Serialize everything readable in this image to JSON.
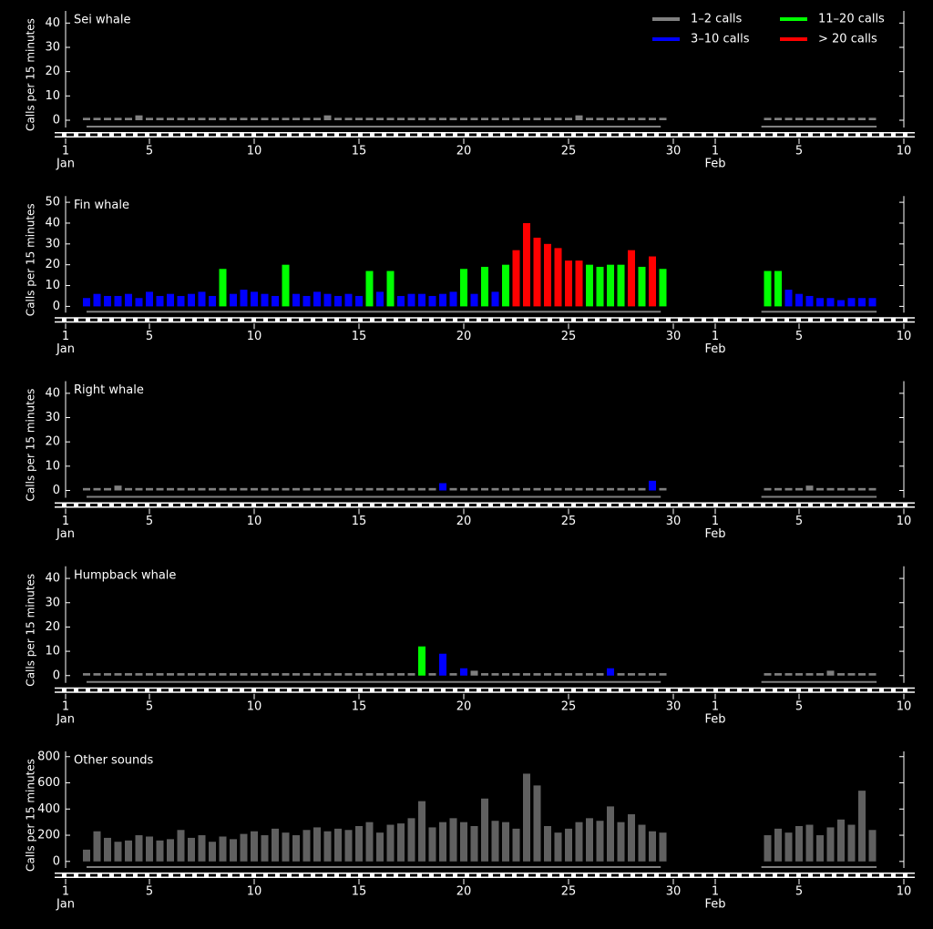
{
  "chart_data": {
    "type": "bar",
    "y_label": "Calls per 15 minutes",
    "legend": [
      {
        "name": "1–2 calls",
        "color": "#808080",
        "max": 2
      },
      {
        "name": "3–10 calls",
        "color": "#0000ff",
        "max": 10
      },
      {
        "name": "11–20 calls",
        "color": "#00ff00",
        "max": 20
      },
      {
        "name": "> 20 calls",
        "color": "#ff0000",
        "max": null
      }
    ],
    "xlim": [
      0,
      40
    ],
    "xticks": [
      {
        "value": 0,
        "label": "1"
      },
      {
        "value": 4,
        "label": "5"
      },
      {
        "value": 9,
        "label": "10"
      },
      {
        "value": 14,
        "label": "15"
      },
      {
        "value": 19,
        "label": "20"
      },
      {
        "value": 24,
        "label": "25"
      },
      {
        "value": 29,
        "label": "30"
      },
      {
        "value": 31,
        "label": "1"
      },
      {
        "value": 35,
        "label": "5"
      },
      {
        "value": 40,
        "label": "10"
      }
    ],
    "x_month_labels": [
      {
        "value": 0,
        "label": "Jan"
      },
      {
        "value": 31,
        "label": "Feb"
      }
    ],
    "coverage": [
      [
        1,
        28.4
      ],
      [
        33.2,
        38.7
      ]
    ],
    "x": [
      1,
      1.5,
      2,
      2.5,
      3,
      3.5,
      4,
      4.5,
      5,
      5.5,
      6,
      6.5,
      7,
      7.5,
      8,
      8.5,
      9,
      9.5,
      10,
      10.5,
      11,
      11.5,
      12,
      12.5,
      13,
      13.5,
      14,
      14.5,
      15,
      15.5,
      16,
      16.5,
      17,
      17.5,
      18,
      18.5,
      19,
      19.5,
      20,
      20.5,
      21,
      21.5,
      22,
      22.5,
      23,
      23.5,
      24,
      24.5,
      25,
      25.5,
      26,
      26.5,
      27,
      27.5,
      28,
      28.5,
      33.5,
      34,
      34.5,
      35,
      35.5,
      36,
      36.5,
      37,
      37.5,
      38,
      38.5
    ],
    "panels": [
      {
        "title": "Sei whale",
        "ylim": [
          -3,
          45
        ],
        "yticks": [
          0,
          10,
          20,
          30,
          40
        ],
        "values": [
          1,
          1,
          1,
          1,
          1,
          2,
          1,
          1,
          1,
          1,
          1,
          1,
          1,
          1,
          1,
          1,
          1,
          1,
          1,
          1,
          1,
          1,
          1,
          2,
          1,
          1,
          1,
          1,
          1,
          1,
          1,
          1,
          1,
          1,
          1,
          1,
          1,
          1,
          1,
          1,
          1,
          1,
          1,
          1,
          1,
          1,
          1,
          2,
          1,
          1,
          1,
          1,
          1,
          1,
          1,
          1,
          1,
          1,
          1,
          1,
          1,
          1,
          1,
          1,
          1,
          1,
          1
        ]
      },
      {
        "title": "Fin whale",
        "ylim": [
          -3,
          53
        ],
        "yticks": [
          0,
          10,
          20,
          30,
          40,
          50
        ],
        "values": [
          4,
          6,
          5,
          5,
          6,
          4,
          7,
          5,
          6,
          5,
          6,
          7,
          5,
          18,
          6,
          8,
          7,
          6,
          5,
          20,
          6,
          5,
          7,
          6,
          5,
          6,
          5,
          17,
          7,
          17,
          5,
          6,
          6,
          5,
          6,
          7,
          18,
          6,
          19,
          7,
          20,
          27,
          40,
          33,
          30,
          28,
          22,
          22,
          20,
          19,
          20,
          20,
          27,
          19,
          24,
          18,
          17,
          17,
          8,
          6,
          5,
          4,
          4,
          3,
          4,
          4,
          4
        ]
      },
      {
        "title": "Right whale",
        "ylim": [
          -3,
          45
        ],
        "yticks": [
          0,
          10,
          20,
          30,
          40
        ],
        "values": [
          1,
          1,
          1,
          2,
          1,
          1,
          1,
          1,
          1,
          1,
          1,
          1,
          1,
          1,
          1,
          1,
          1,
          1,
          1,
          1,
          1,
          1,
          1,
          1,
          1,
          1,
          1,
          1,
          1,
          1,
          1,
          1,
          1,
          1,
          3,
          1,
          1,
          1,
          1,
          1,
          1,
          1,
          1,
          1,
          1,
          1,
          1,
          1,
          1,
          1,
          1,
          1,
          1,
          1,
          4,
          1,
          1,
          1,
          1,
          1,
          2,
          1,
          1,
          1,
          1,
          1,
          1
        ]
      },
      {
        "title": "Humpback whale",
        "ylim": [
          -3,
          45
        ],
        "yticks": [
          0,
          10,
          20,
          30,
          40
        ],
        "values": [
          1,
          1,
          1,
          1,
          1,
          1,
          1,
          1,
          1,
          1,
          1,
          1,
          1,
          1,
          1,
          1,
          1,
          1,
          1,
          1,
          1,
          1,
          1,
          1,
          1,
          1,
          1,
          1,
          1,
          1,
          1,
          1,
          12,
          1,
          9,
          1,
          3,
          2,
          1,
          1,
          1,
          1,
          1,
          1,
          1,
          1,
          1,
          1,
          1,
          1,
          3,
          1,
          1,
          1,
          1,
          1,
          1,
          1,
          1,
          1,
          1,
          1,
          2,
          1,
          1,
          1,
          1
        ]
      },
      {
        "title": "Other sounds",
        "ylim": [
          -50,
          840
        ],
        "yticks": [
          0,
          200,
          400,
          600,
          800
        ],
        "color": "#606060",
        "values": [
          90,
          230,
          180,
          150,
          160,
          200,
          190,
          160,
          170,
          240,
          180,
          200,
          150,
          190,
          170,
          210,
          230,
          200,
          250,
          220,
          200,
          240,
          260,
          230,
          250,
          240,
          270,
          300,
          220,
          280,
          290,
          330,
          460,
          260,
          300,
          330,
          300,
          270,
          480,
          310,
          300,
          250,
          670,
          580,
          270,
          220,
          250,
          300,
          330,
          310,
          420,
          300,
          360,
          280,
          230,
          220,
          200,
          250,
          220,
          270,
          280,
          200,
          260,
          320,
          280,
          540,
          240
        ]
      }
    ]
  }
}
